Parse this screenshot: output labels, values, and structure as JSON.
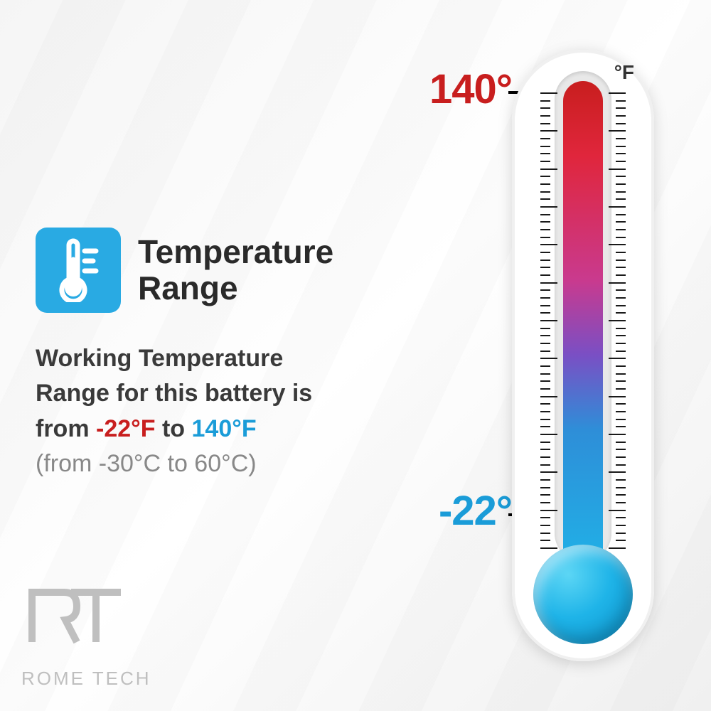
{
  "title": "Temperature\nRange",
  "description": {
    "line1": "Working Temperature",
    "line2": "Range for this battery is",
    "line3_prefix": "from ",
    "low_f": "-22°F",
    "line3_mid": " to ",
    "high_f": "140°F",
    "celsius": "(from -30°C to 60°C)"
  },
  "thermometer": {
    "unit": "°F",
    "high_label": "140°",
    "low_label": "-22°",
    "high_color": "#c81e1e",
    "low_color": "#1a9cd8",
    "bulb_color": "#1fb4e8",
    "gradient_top": "#c81e1e",
    "gradient_bottom": "#1fb4e8",
    "tick_count": 60,
    "major_every": 5
  },
  "icon": {
    "bg_color": "#29aae3",
    "name": "thermometer-icon"
  },
  "logo": {
    "mark": "RT",
    "text": "ROME TECH",
    "color": "#bfbfbf"
  },
  "colors": {
    "title": "#2a2a2a",
    "body": "#3a3a3a",
    "muted": "#888888",
    "low_f_text": "#c81e1e",
    "high_f_text": "#1a9cd8"
  }
}
